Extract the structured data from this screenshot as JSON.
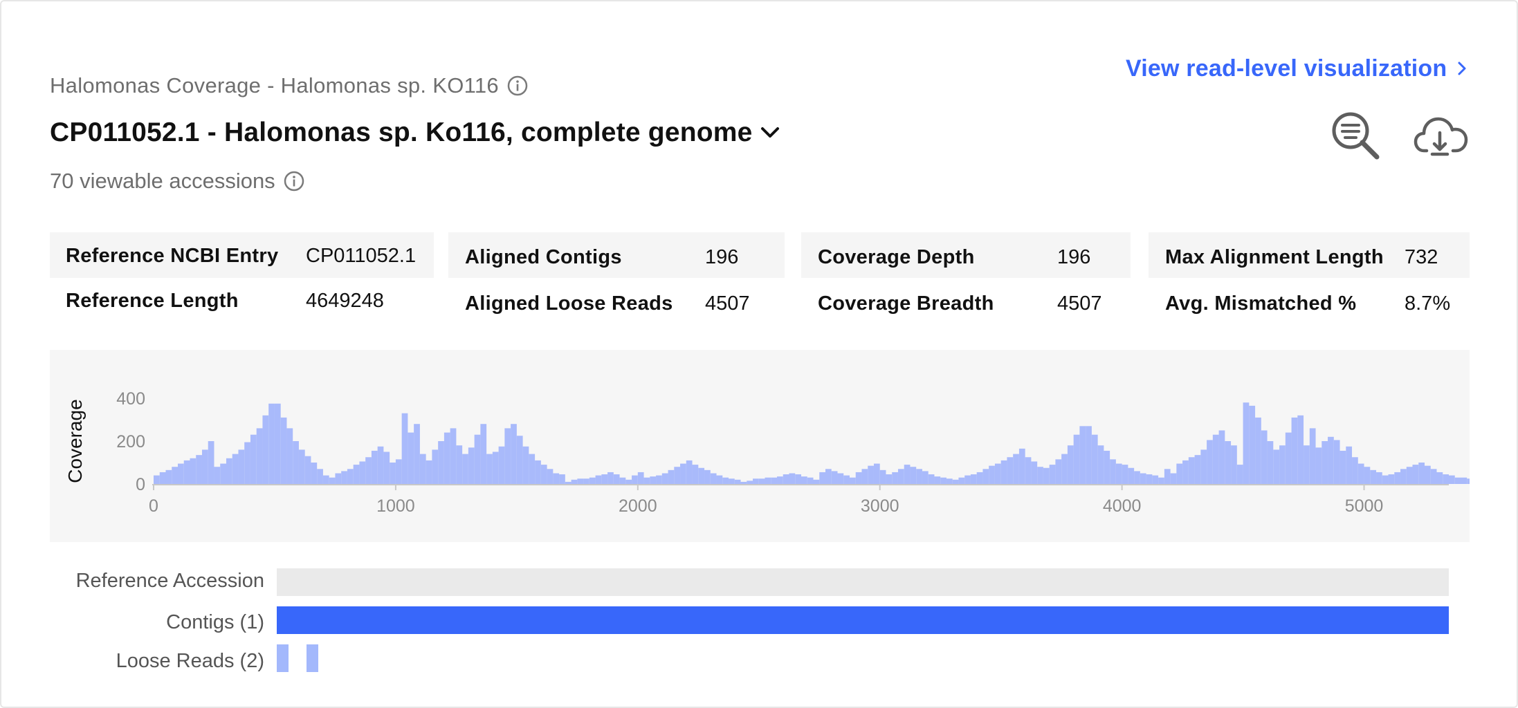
{
  "header": {
    "subtitle": "Halomonas Coverage - Halomonas sp. KO116",
    "title": "CP011052.1 - Halomonas sp. Ko116, complete genome",
    "accessions": "70 viewable accessions",
    "view_link": "View read-level visualization"
  },
  "toolbar": {
    "search_icon": "search-lines-icon",
    "download_icon": "cloud-download-icon"
  },
  "stats": {
    "col1": [
      {
        "label": "Reference NCBI Entry",
        "value": "CP011052.1"
      },
      {
        "label": "Reference Length",
        "value": "4649248"
      }
    ],
    "col2": [
      {
        "label": "Aligned Contigs",
        "value": "196"
      },
      {
        "label": "Aligned Loose Reads",
        "value": "4507"
      }
    ],
    "col3": [
      {
        "label": "Coverage Depth",
        "value": "196"
      },
      {
        "label": "Coverage Breadth",
        "value": "4507"
      }
    ],
    "col4": [
      {
        "label": "Max Alignment Length",
        "value": "732"
      },
      {
        "label": "Avg. Mismatched %",
        "value": "8.7%"
      }
    ]
  },
  "chart_data": {
    "type": "bar",
    "ylabel": "Coverage",
    "xlabel": "",
    "xlim": [
      0,
      5350
    ],
    "ylim": [
      0,
      400
    ],
    "xticks": [
      "0",
      "1000",
      "2000",
      "3000",
      "4000",
      "5000"
    ],
    "yticks": [
      "400",
      "200",
      "0"
    ],
    "bin_width": 25,
    "values": [
      40,
      55,
      65,
      80,
      95,
      110,
      120,
      135,
      160,
      200,
      80,
      95,
      120,
      140,
      160,
      195,
      230,
      260,
      320,
      375,
      375,
      310,
      260,
      200,
      160,
      130,
      100,
      70,
      40,
      30,
      50,
      60,
      70,
      90,
      105,
      125,
      155,
      175,
      150,
      100,
      115,
      330,
      240,
      280,
      140,
      110,
      160,
      200,
      240,
      260,
      180,
      140,
      170,
      230,
      280,
      140,
      150,
      175,
      260,
      280,
      225,
      175,
      140,
      110,
      90,
      70,
      50,
      45,
      10,
      20,
      25,
      25,
      30,
      40,
      45,
      55,
      45,
      30,
      20,
      40,
      55,
      30,
      35,
      40,
      50,
      65,
      80,
      95,
      110,
      90,
      75,
      65,
      50,
      40,
      30,
      25,
      20,
      10,
      15,
      25,
      25,
      30,
      30,
      35,
      45,
      50,
      45,
      35,
      30,
      20,
      55,
      70,
      60,
      50,
      40,
      30,
      55,
      70,
      85,
      95,
      65,
      45,
      55,
      70,
      90,
      80,
      70,
      60,
      45,
      35,
      30,
      25,
      20,
      30,
      40,
      45,
      55,
      70,
      85,
      95,
      110,
      125,
      140,
      165,
      125,
      105,
      80,
      75,
      90,
      115,
      140,
      180,
      230,
      270,
      270,
      230,
      180,
      155,
      115,
      95,
      90,
      75,
      60,
      50,
      45,
      40,
      30,
      70,
      50,
      95,
      110,
      125,
      135,
      160,
      205,
      230,
      250,
      200,
      180,
      90,
      380,
      365,
      310,
      250,
      200,
      160,
      180,
      240,
      310,
      320,
      180,
      260,
      170,
      200,
      220,
      205,
      155,
      175,
      125,
      95,
      80,
      65,
      55,
      40,
      45,
      55,
      70,
      80,
      90,
      100,
      85,
      70,
      55,
      45,
      40,
      30,
      30,
      25,
      20,
      30,
      35,
      40,
      45,
      45,
      50,
      35,
      45,
      55,
      145,
      115,
      90,
      80,
      65,
      55,
      45,
      95,
      115,
      75,
      60,
      50,
      60,
      70,
      80,
      65,
      50,
      40,
      45,
      35,
      30,
      25,
      40,
      55,
      70,
      90,
      110,
      125,
      140,
      160,
      190,
      170,
      145,
      125,
      110,
      100,
      75,
      60,
      50,
      45,
      40,
      35,
      55,
      70,
      85,
      95,
      100,
      120,
      145,
      155,
      70,
      260,
      220,
      160
    ]
  },
  "tracks": {
    "reference_label": "Reference Accession",
    "contigs_label": "Contigs (1)",
    "loose_reads_label": "Loose Reads (2)",
    "reference_color": "#eaeaea",
    "contigs_color": "#3867fa",
    "loose_reads_color": "#a3b8fc"
  },
  "colors": {
    "accent": "#3867fa",
    "bar_fill": "#a9bafb",
    "muted_text": "#6e6e6e"
  }
}
